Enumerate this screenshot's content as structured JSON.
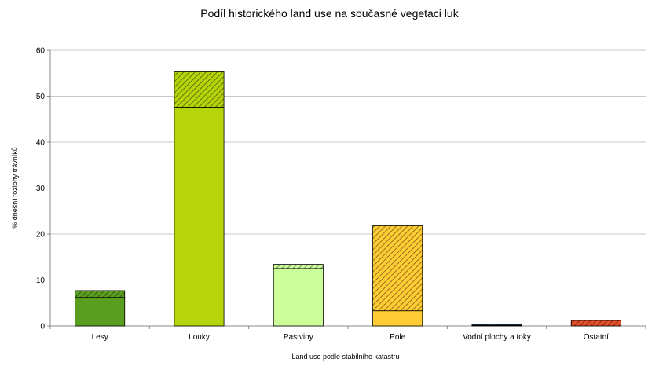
{
  "chart_data": {
    "type": "bar",
    "stacked": true,
    "title": "Podíl historického land use na současné vegetaci luk",
    "xlabel": "Land use podle stabilního katastru",
    "ylabel": "% dnešní rozlohy trávníků",
    "ylim": [
      0,
      60
    ],
    "yticks": [
      0,
      10,
      20,
      30,
      40,
      50,
      60
    ],
    "grid": true,
    "categories": [
      "Lesy",
      "Louky",
      "Pastviny",
      "Pole",
      "Vodní plochy a toky",
      "Ostatní"
    ],
    "series": [
      {
        "values": [
          6.2,
          47.6,
          12.5,
          3.3,
          0.1,
          0.0
        ],
        "pattern": "solid"
      },
      {
        "values": [
          1.5,
          7.7,
          0.9,
          18.5,
          0.2,
          1.2
        ],
        "pattern": "hatched"
      }
    ],
    "colors": [
      "#5a9e1f",
      "#b5d40a",
      "#ccff99",
      "#ffcc33",
      "#4a7fb5",
      "#e8502a"
    ]
  }
}
